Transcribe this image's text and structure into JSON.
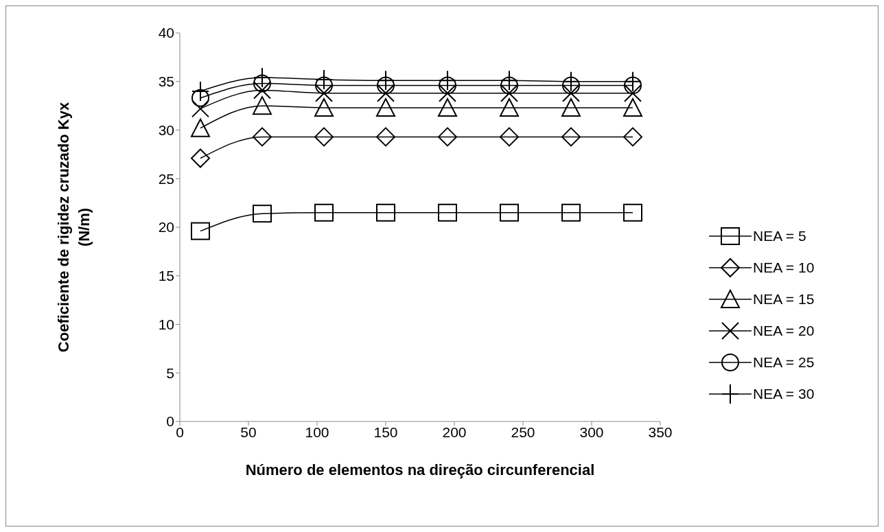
{
  "chart_data": {
    "type": "line",
    "xlabel": "Número de elementos na direção circunferencial",
    "ylabel": "Coeficiente de rigidez cruzado Kyx (N/m)",
    "x": [
      15,
      60,
      105,
      150,
      195,
      240,
      285,
      330
    ],
    "series": [
      {
        "name": "NEA = 5",
        "color": "#000000",
        "marker": "square",
        "values": [
          19.6,
          21.4,
          21.5,
          21.5,
          21.5,
          21.5,
          21.5,
          21.5
        ]
      },
      {
        "name": "NEA = 10",
        "color": "#000000",
        "marker": "diamond",
        "values": [
          27.1,
          29.3,
          29.3,
          29.3,
          29.3,
          29.3,
          29.3,
          29.3
        ]
      },
      {
        "name": "NEA = 15",
        "color": "#000000",
        "marker": "triangle",
        "values": [
          30.2,
          32.5,
          32.3,
          32.3,
          32.3,
          32.3,
          32.3,
          32.3
        ]
      },
      {
        "name": "NEA = 20",
        "color": "#000000",
        "marker": "cross",
        "values": [
          32.2,
          34.1,
          33.8,
          33.8,
          33.8,
          33.8,
          33.8,
          33.8
        ]
      },
      {
        "name": "NEA = 25",
        "color": "#000000",
        "marker": "circle",
        "values": [
          33.3,
          34.8,
          34.6,
          34.6,
          34.6,
          34.6,
          34.6,
          34.6
        ]
      },
      {
        "name": "NEA = 30",
        "color": "#000000",
        "marker": "plus",
        "values": [
          34.0,
          35.4,
          35.2,
          35.1,
          35.1,
          35.1,
          35.0,
          35.0
        ]
      }
    ],
    "xlim": [
      0,
      350
    ],
    "xticks": [
      0,
      50,
      100,
      150,
      200,
      250,
      300,
      350
    ],
    "ylim": [
      0,
      40
    ],
    "yticks": [
      0,
      5,
      10,
      15,
      20,
      25,
      30,
      35,
      40
    ],
    "grid": false,
    "legend": "right",
    "line_style": "solid"
  }
}
